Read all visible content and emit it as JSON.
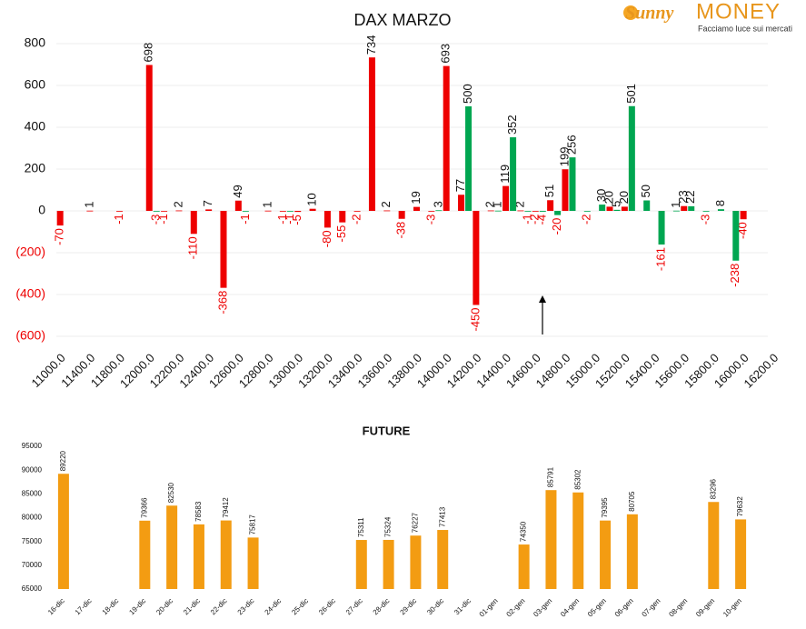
{
  "logo": {
    "brand_script": "Sunny",
    "brand": "MONEY",
    "tagline": "Facciamo luce sui mercati"
  },
  "chart_data": [
    {
      "type": "bar",
      "title": "DAX MARZO",
      "categories": [
        "11000.0",
        null,
        "11400.0",
        null,
        "11800.0",
        null,
        "12000.0",
        null,
        "12200.0",
        null,
        "12400.0",
        null,
        "12600.0",
        null,
        "12800.0",
        null,
        "13000.0",
        null,
        "13200.0",
        null,
        "13400.0",
        null,
        "13600.0",
        null,
        "13800.0",
        null,
        "14000.0",
        null,
        "14200.0",
        null,
        "14400.0",
        null,
        "14600.0",
        null,
        "14800.0",
        null,
        "15000.0",
        null,
        "15200.0",
        null,
        "15400.0",
        null,
        "15600.0",
        null,
        "15800.0",
        null,
        "16000.0",
        null,
        "16200.0"
      ],
      "series": [
        {
          "color": "#ee0000",
          "values": [
            -70,
            null,
            1,
            null,
            -1,
            null,
            698,
            -1,
            2,
            -110,
            7,
            -368,
            49,
            null,
            1,
            -1,
            -5,
            10,
            -80,
            -55,
            -2,
            734,
            2,
            -38,
            19,
            -3,
            693,
            77,
            -450,
            2,
            119,
            2,
            -2,
            51,
            199,
            null,
            null,
            20,
            20,
            null,
            null,
            null,
            23,
            null,
            null,
            null,
            -40,
            null,
            null
          ]
        },
        {
          "color": "#00a651",
          "values": [
            null,
            null,
            null,
            null,
            null,
            null,
            -3,
            null,
            null,
            null,
            null,
            null,
            -1,
            null,
            null,
            -1,
            null,
            null,
            null,
            null,
            null,
            null,
            null,
            null,
            null,
            3,
            null,
            500,
            null,
            1,
            352,
            -1,
            -4,
            -20,
            256,
            -2,
            30,
            5,
            501,
            50,
            -161,
            1,
            22,
            -3,
            8,
            -238,
            null,
            null,
            null
          ]
        }
      ],
      "ylim": [
        -600,
        900
      ],
      "yticks": [
        {
          "value": -600,
          "label": "(600)"
        },
        {
          "value": -400,
          "label": "(400)"
        },
        {
          "value": -200,
          "label": "(200)"
        },
        0,
        200,
        400,
        600,
        800
      ],
      "negative_label_color": "#ee0000",
      "grid": true
    },
    {
      "type": "bar",
      "title": "FUTURE",
      "categories": [
        "16-dic",
        "17-dic",
        "18-dic",
        "19-dic",
        "20-dic",
        "21-dic",
        "22-dic",
        "23-dic",
        "24-dic",
        "25-dic",
        "26-dic",
        "27-dic",
        "28-dic",
        "29-dic",
        "30-dic",
        "31-dic",
        "01-gen",
        "02-gen",
        "03-gen",
        "04-gen",
        "05-gen",
        "06-gen",
        "07-gen",
        "08-gen",
        "09-gen",
        "10-gen"
      ],
      "values": [
        89220,
        null,
        null,
        79366,
        82530,
        78583,
        79412,
        75817,
        null,
        null,
        null,
        75311,
        75324,
        76227,
        77413,
        null,
        null,
        74350,
        85791,
        85302,
        79395,
        80705,
        null,
        null,
        83296,
        79632
      ],
      "color": "#f39c12",
      "ylim": [
        65000,
        95000
      ],
      "yticks": [
        65000,
        70000,
        75000,
        80000,
        85000,
        90000,
        95000
      ],
      "grid": false
    }
  ]
}
